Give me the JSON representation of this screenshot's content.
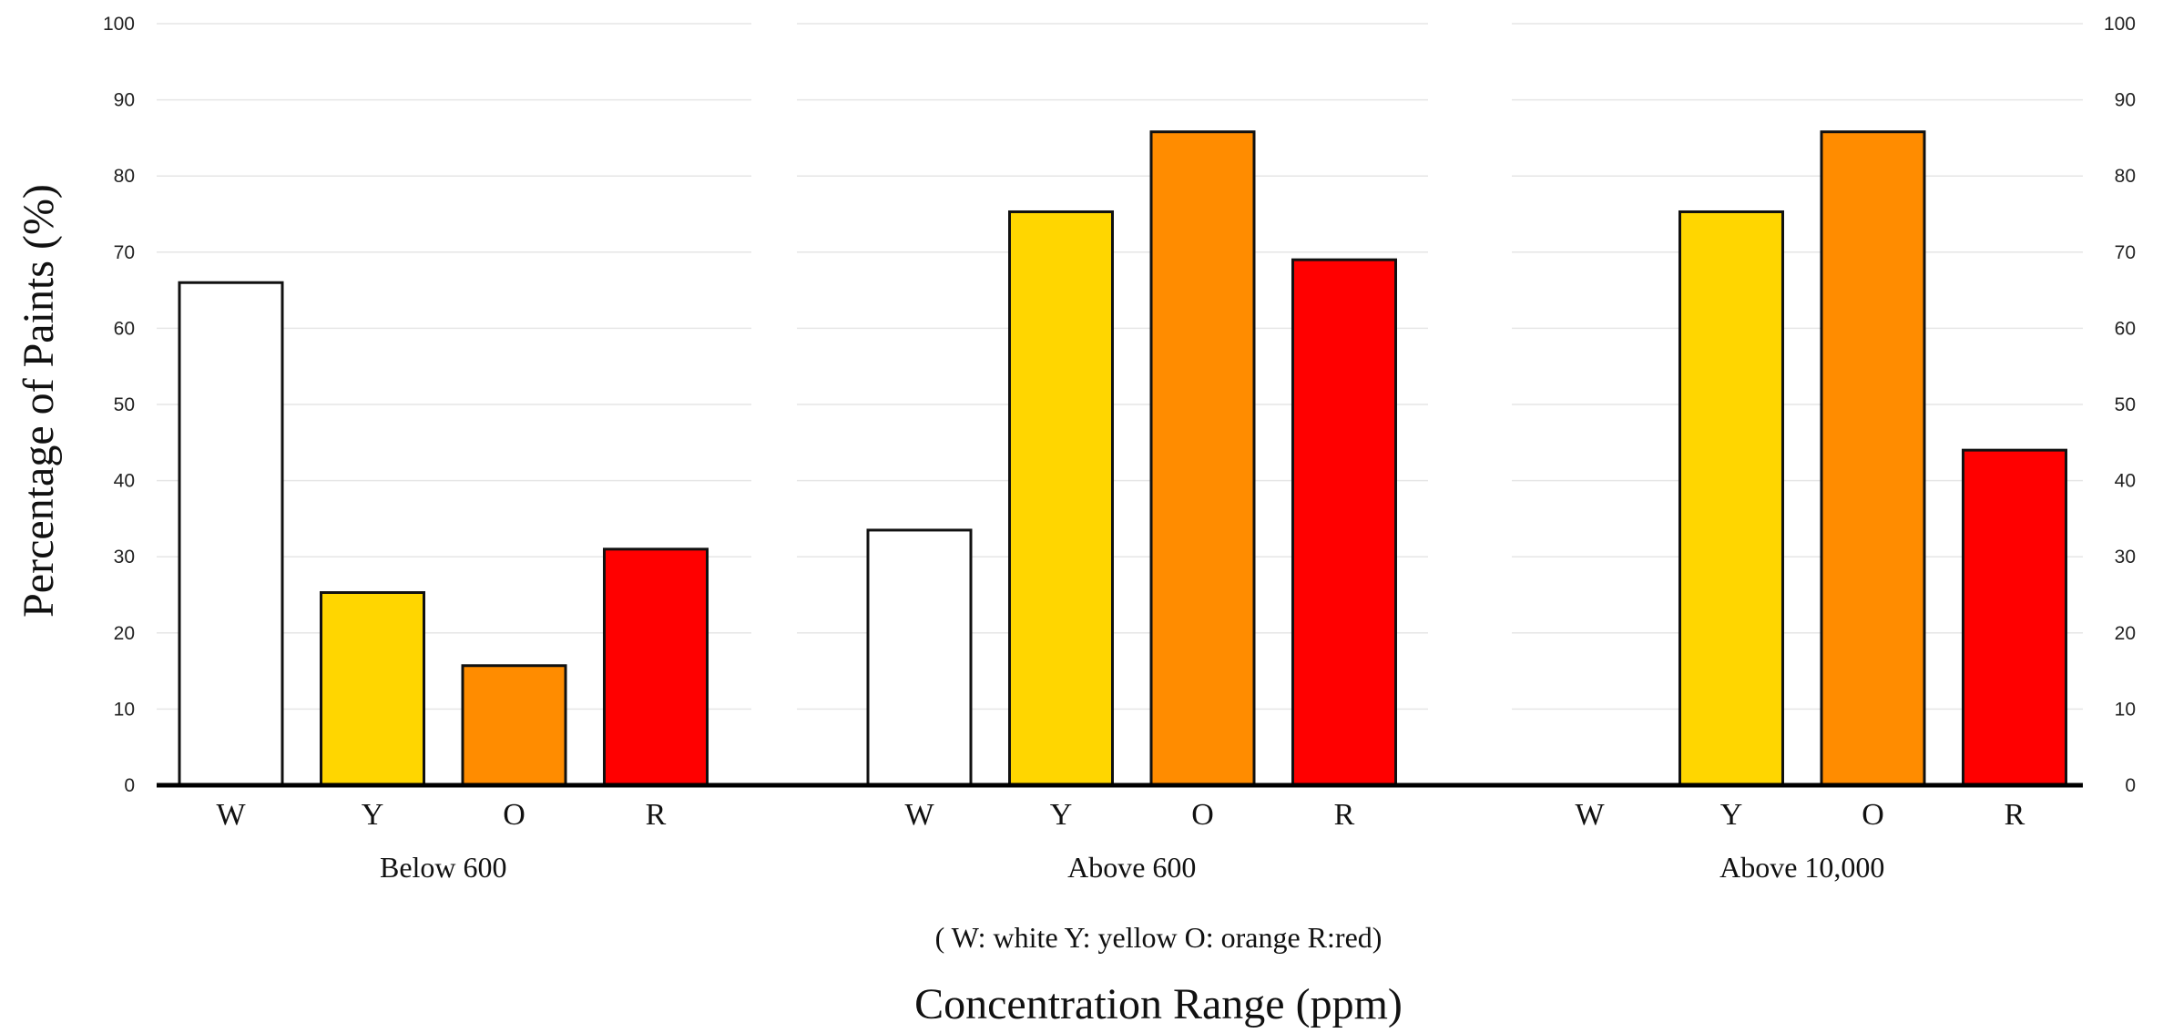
{
  "chart_data": {
    "type": "bar",
    "groups": [
      {
        "name": "Below 600",
        "categories": [
          "W",
          "Y",
          "O",
          "R"
        ],
        "values": [
          66,
          25.3,
          15.7,
          31
        ]
      },
      {
        "name": "Above 600",
        "categories": [
          "W",
          "Y",
          "O",
          "R"
        ],
        "values": [
          33.5,
          75.3,
          85.8,
          69
        ]
      },
      {
        "name": "Above 10,000",
        "categories": [
          "W",
          "Y",
          "O",
          "R"
        ],
        "values": [
          0,
          75.3,
          85.8,
          44
        ]
      }
    ],
    "category_colors": {
      "W": "#ffffff",
      "Y": "#ffd600",
      "O": "#ff8c00",
      "R": "#ff0000"
    },
    "ylabel": "Percentage of Paints (%)",
    "xlabel": "Concentration Range (ppm)",
    "note": "( W: white   Y: yellow   O: orange   R:red)",
    "ylim": [
      0,
      100
    ],
    "yticks": [
      0,
      10,
      20,
      30,
      40,
      50,
      60,
      70,
      80,
      90,
      100
    ],
    "grid": true
  }
}
